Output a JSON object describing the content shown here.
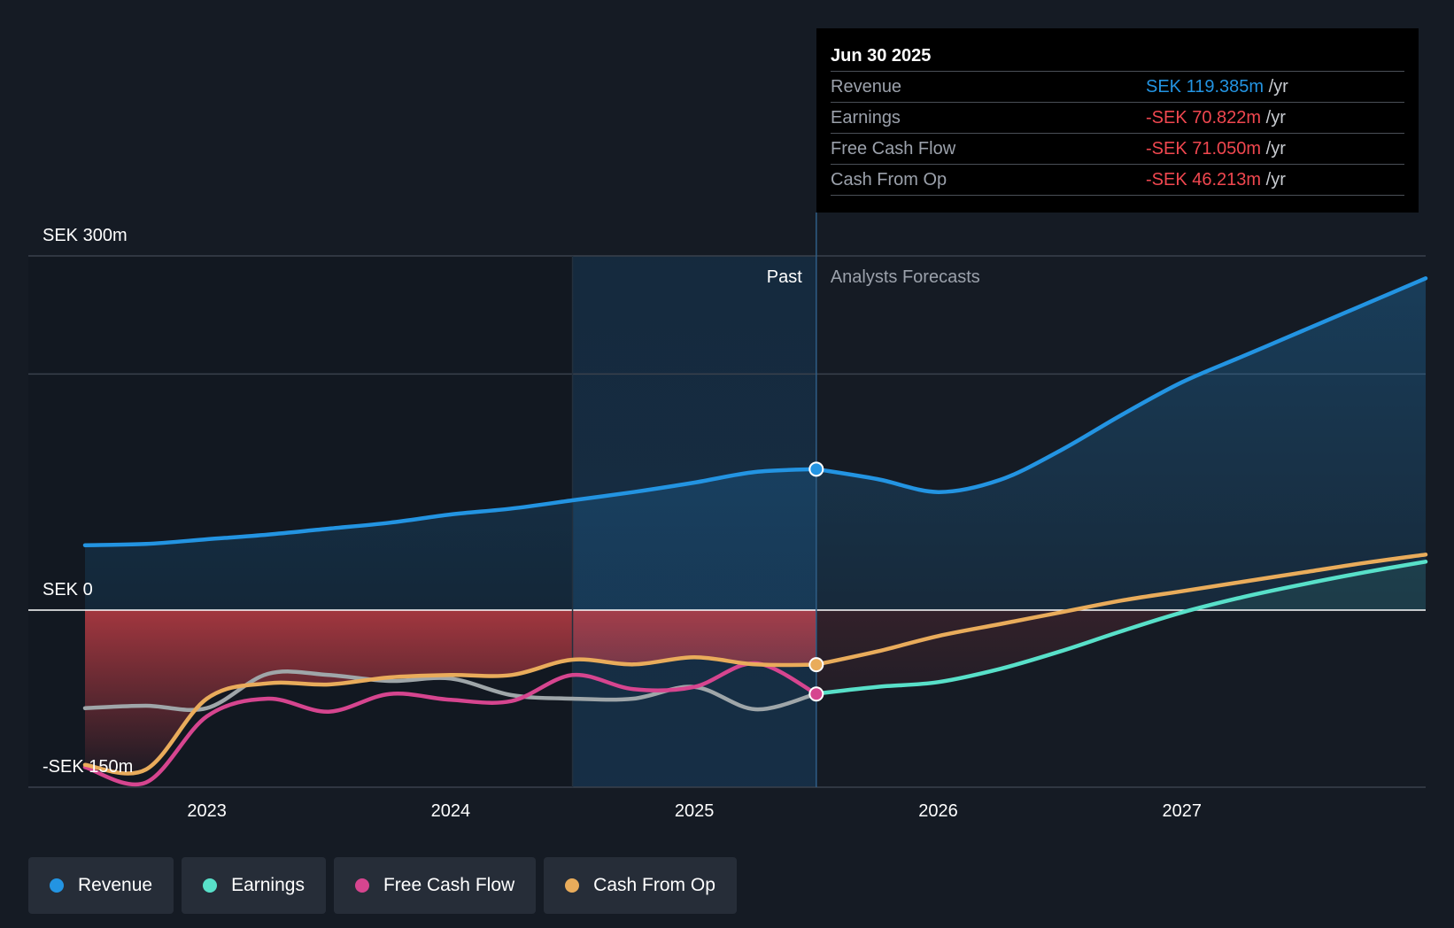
{
  "colors": {
    "revenue": "#2394e2",
    "earnings": "#58e0c9",
    "free_cash_flow": "#d6458f",
    "cash_from_op": "#e9ac5b",
    "negative": "#f0474f",
    "gridline": "#3a414c"
  },
  "tooltip": {
    "date": "Jun 30 2025",
    "rows": [
      {
        "label": "Revenue",
        "value": "SEK 119.385m",
        "unit": "/yr"
      },
      {
        "label": "Earnings",
        "value": "-SEK 70.822m",
        "unit": "/yr"
      },
      {
        "label": "Free Cash Flow",
        "value": "-SEK 71.050m",
        "unit": "/yr"
      },
      {
        "label": "Cash From Op",
        "value": "-SEK 46.213m",
        "unit": "/yr"
      }
    ]
  },
  "labels": {
    "past": "Past",
    "forecast": "Analysts Forecasts"
  },
  "legend": [
    {
      "label": "Revenue",
      "color_key": "revenue"
    },
    {
      "label": "Earnings",
      "color_key": "earnings"
    },
    {
      "label": "Free Cash Flow",
      "color_key": "free_cash_flow"
    },
    {
      "label": "Cash From Op",
      "color_key": "cash_from_op"
    }
  ],
  "chart_data": {
    "type": "line",
    "title": "",
    "xlabel": "",
    "ylabel": "SEK",
    "ylim": [
      -150,
      300
    ],
    "xlim": [
      2022.5,
      2028.0
    ],
    "y_tick_labels": [
      {
        "value": 300,
        "label": "SEK 300m"
      },
      {
        "value": 0,
        "label": "SEK 0"
      },
      {
        "value": -150,
        "label": "-SEK 150m"
      }
    ],
    "x_ticks": [
      {
        "value": 2023,
        "label": "2023"
      },
      {
        "value": 2024,
        "label": "2024"
      },
      {
        "value": 2025,
        "label": "2025"
      },
      {
        "value": 2026,
        "label": "2026"
      },
      {
        "value": 2027,
        "label": "2027"
      }
    ],
    "past_end": 2025.5,
    "highlight_start": 2024.5,
    "series": [
      {
        "name": "Revenue",
        "key": "revenue",
        "points": [
          [
            2022.5,
            55
          ],
          [
            2022.75,
            56
          ],
          [
            2023.0,
            60
          ],
          [
            2023.25,
            64
          ],
          [
            2023.5,
            69
          ],
          [
            2023.75,
            74
          ],
          [
            2024.0,
            81
          ],
          [
            2024.25,
            86
          ],
          [
            2024.5,
            93
          ],
          [
            2024.75,
            100
          ],
          [
            2025.0,
            108
          ],
          [
            2025.25,
            117
          ],
          [
            2025.5,
            119.385
          ],
          [
            2025.75,
            111
          ],
          [
            2026.0,
            100
          ],
          [
            2026.25,
            110
          ],
          [
            2026.5,
            135
          ],
          [
            2026.75,
            165
          ],
          [
            2027.0,
            193
          ],
          [
            2027.25,
            215
          ],
          [
            2027.5,
            237
          ],
          [
            2027.75,
            259
          ],
          [
            2028.0,
            281
          ]
        ]
      },
      {
        "name": "Earnings",
        "key": "earnings",
        "points": [
          [
            2022.5,
            -83
          ],
          [
            2022.75,
            -81
          ],
          [
            2023.0,
            -83
          ],
          [
            2023.25,
            -54
          ],
          [
            2023.5,
            -55
          ],
          [
            2023.75,
            -60
          ],
          [
            2024.0,
            -58
          ],
          [
            2024.25,
            -72
          ],
          [
            2024.5,
            -75
          ],
          [
            2024.75,
            -75
          ],
          [
            2025.0,
            -65
          ],
          [
            2025.25,
            -84
          ],
          [
            2025.5,
            -70.822
          ],
          [
            2025.75,
            -65
          ],
          [
            2026.0,
            -61
          ],
          [
            2026.25,
            -50
          ],
          [
            2026.5,
            -35
          ],
          [
            2026.75,
            -18
          ],
          [
            2027.0,
            -2
          ],
          [
            2027.25,
            11
          ],
          [
            2027.5,
            22
          ],
          [
            2027.75,
            32
          ],
          [
            2028.0,
            41
          ]
        ]
      },
      {
        "name": "Free Cash Flow",
        "key": "free_cash_flow",
        "points": [
          [
            2022.5,
            -133
          ],
          [
            2022.75,
            -146
          ],
          [
            2023.0,
            -90
          ],
          [
            2023.25,
            -75
          ],
          [
            2023.5,
            -86
          ],
          [
            2023.75,
            -71
          ],
          [
            2024.0,
            -76
          ],
          [
            2024.25,
            -77
          ],
          [
            2024.5,
            -55
          ],
          [
            2024.75,
            -67
          ],
          [
            2025.0,
            -65
          ],
          [
            2025.25,
            -45
          ],
          [
            2025.5,
            -71.05
          ]
        ]
      },
      {
        "name": "Cash From Op",
        "key": "cash_from_op",
        "points": [
          [
            2022.5,
            -131
          ],
          [
            2022.75,
            -135
          ],
          [
            2023.0,
            -75
          ],
          [
            2023.25,
            -62
          ],
          [
            2023.5,
            -63
          ],
          [
            2023.75,
            -57
          ],
          [
            2024.0,
            -55
          ],
          [
            2024.25,
            -55
          ],
          [
            2024.5,
            -42
          ],
          [
            2024.75,
            -46
          ],
          [
            2025.0,
            -40
          ],
          [
            2025.25,
            -46
          ],
          [
            2025.5,
            -46.213
          ],
          [
            2025.75,
            -35
          ],
          [
            2026.0,
            -22
          ],
          [
            2026.25,
            -12
          ],
          [
            2026.5,
            -2
          ],
          [
            2026.75,
            8
          ],
          [
            2027.0,
            16
          ],
          [
            2027.25,
            24
          ],
          [
            2027.5,
            32
          ],
          [
            2027.75,
            40
          ],
          [
            2028.0,
            47
          ]
        ]
      }
    ]
  }
}
